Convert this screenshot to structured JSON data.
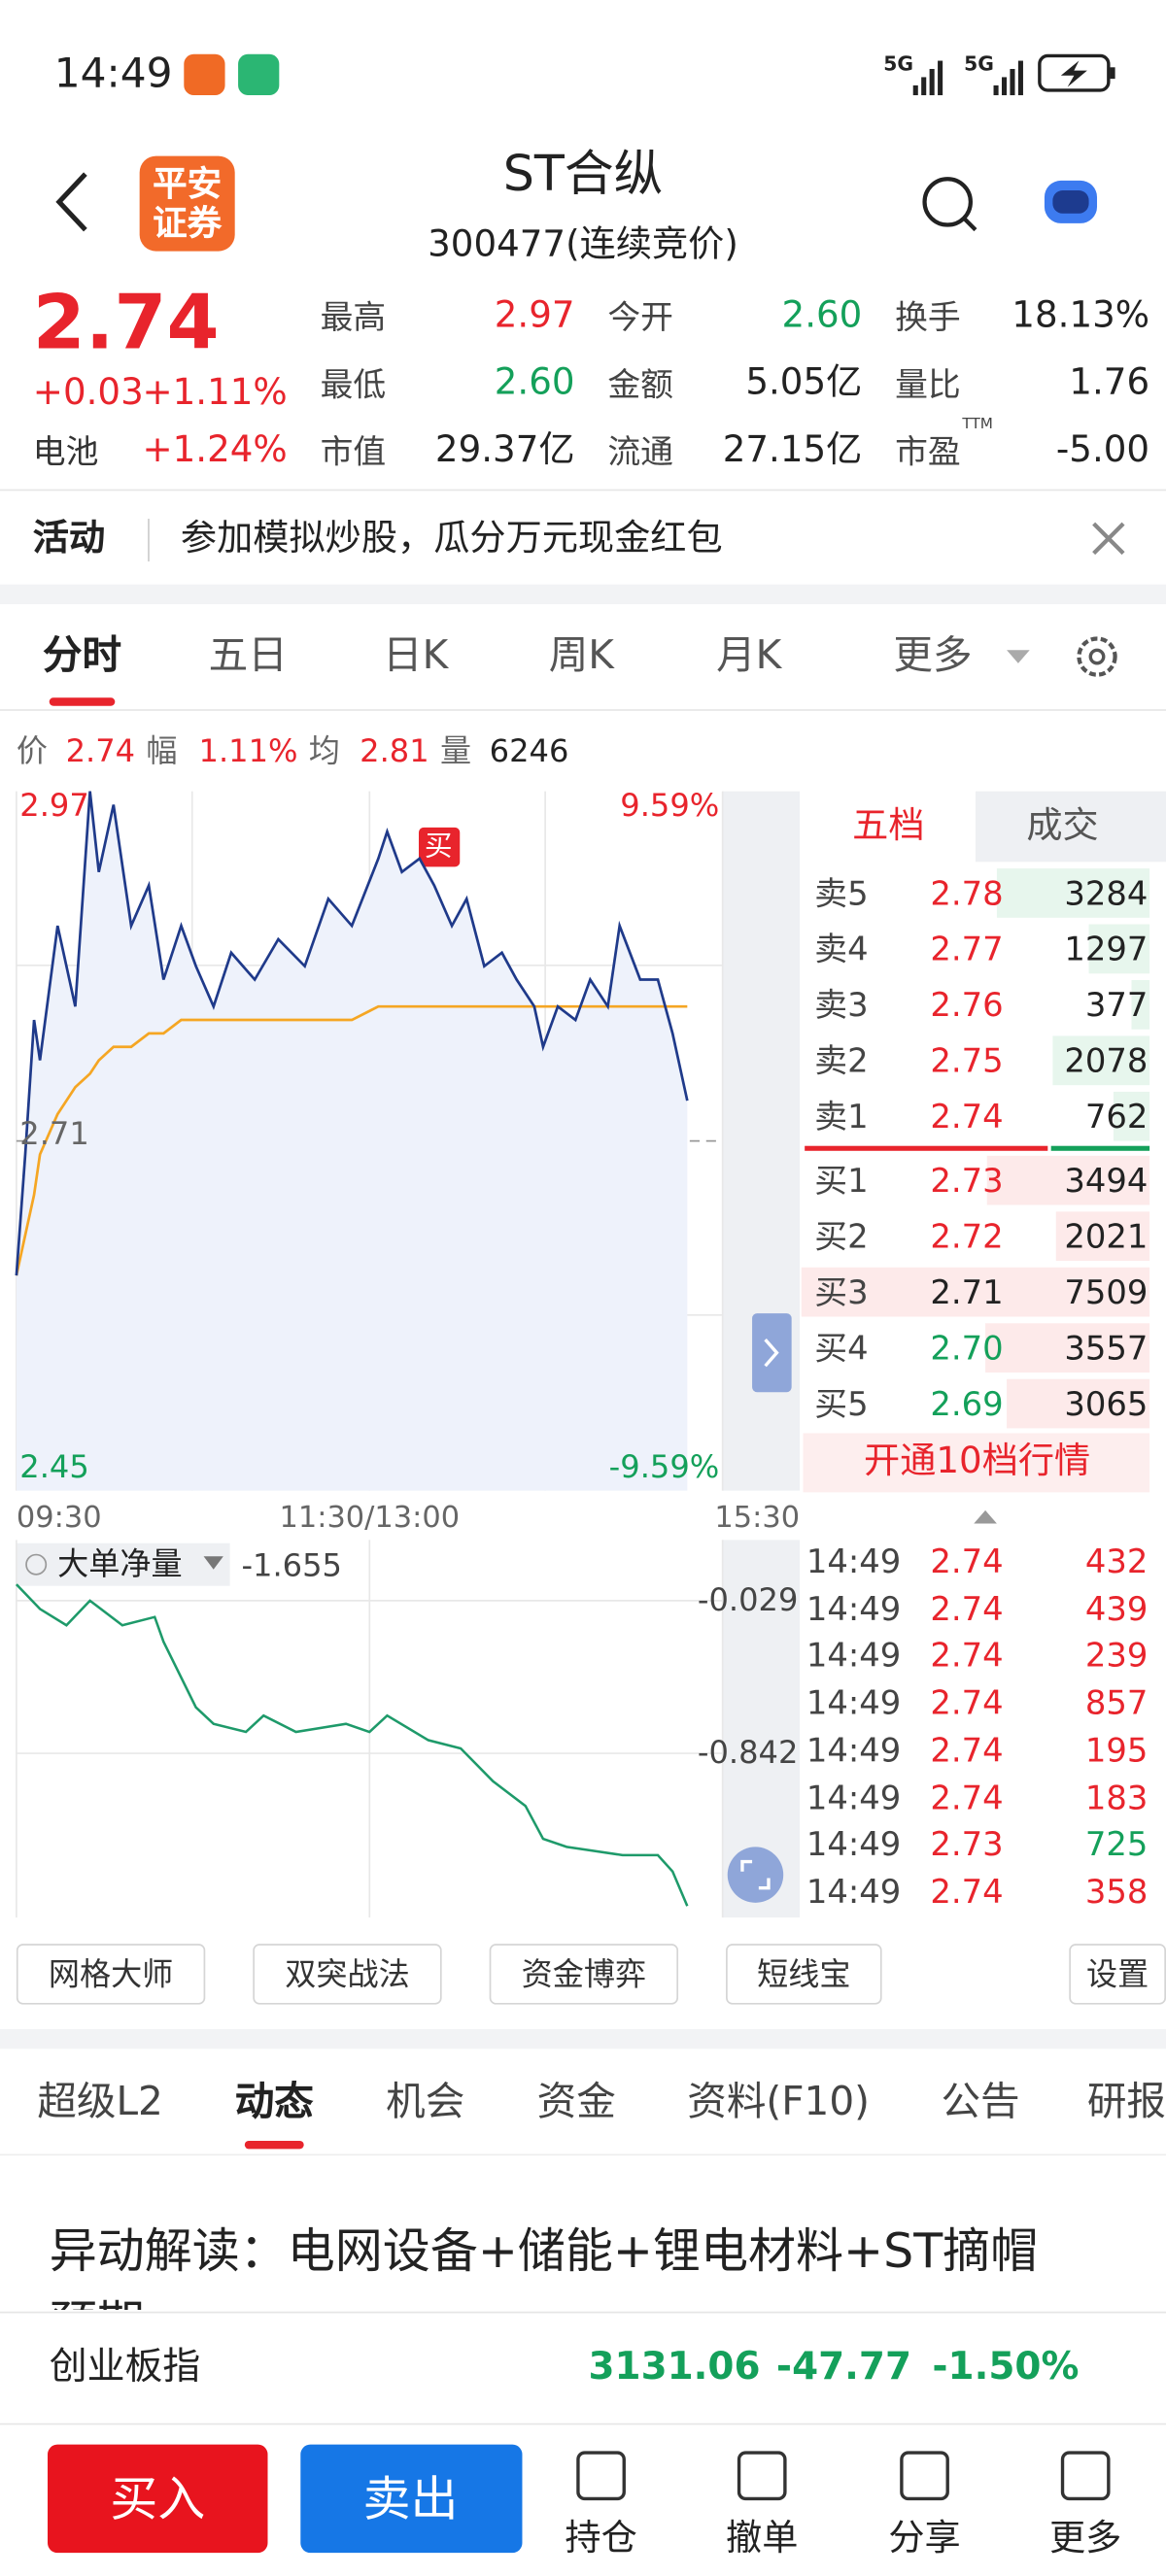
{
  "status_bar": {
    "time": "14:49",
    "net1": "5G",
    "net2": "5G"
  },
  "header": {
    "logo": "平安证券",
    "title": "ST合纵",
    "subtitle": "300477(连续竞价)"
  },
  "quote": {
    "price": "2.74",
    "change": "+0.03",
    "change_pct": "+1.11%",
    "extra_label": "电池",
    "extra_pct": "+1.24%",
    "ttm": "TTM",
    "stats": [
      [
        {
          "label": "最高",
          "value": "2.97",
          "tone": "up"
        },
        {
          "label": "今开",
          "value": "2.60",
          "tone": "down"
        },
        {
          "label": "换手",
          "value": "18.13%",
          "tone": "flat"
        }
      ],
      [
        {
          "label": "最低",
          "value": "2.60",
          "tone": "down"
        },
        {
          "label": "金额",
          "value": "5.05亿",
          "tone": "flat"
        },
        {
          "label": "量比",
          "value": "1.76",
          "tone": "flat"
        }
      ],
      [
        {
          "label": "市值",
          "value": "29.37亿",
          "tone": "flat"
        },
        {
          "label": "流通",
          "value": "27.15亿",
          "tone": "flat"
        },
        {
          "label": "市盈",
          "value": "-5.00",
          "tone": "flat"
        }
      ]
    ]
  },
  "activity": {
    "label": "活动",
    "text": "参加模拟炒股，瓜分万元现金红包"
  },
  "tabs": {
    "items": [
      "分时",
      "五日",
      "日K",
      "周K",
      "月K",
      "更多"
    ],
    "active": 0
  },
  "info": {
    "price_label": "价",
    "price": "2.74",
    "amp_label": "幅",
    "amp": "1.11%",
    "avg_label": "均",
    "avg": "2.81",
    "vol_label": "量",
    "vol": "6246"
  },
  "chart": {
    "top": 2.97,
    "bottom": 2.45,
    "ref": 2.71,
    "top_pct": "9.59%",
    "bottom_pct": "-9.59%",
    "buy_marker": "买",
    "session_minutes": 240,
    "times": [
      "09:30",
      "11:30/13:00",
      "15:30"
    ],
    "minutes": [
      0,
      3,
      6,
      8,
      14,
      20,
      25,
      28,
      33,
      39,
      45,
      50,
      56,
      61,
      67,
      73,
      81,
      89,
      98,
      106,
      114,
      123,
      126,
      131,
      137,
      142,
      148,
      153,
      159,
      165,
      170,
      176,
      179,
      184,
      190,
      195,
      201,
      205,
      212,
      218,
      223,
      228
    ],
    "price": [
      2.61,
      2.7,
      2.8,
      2.77,
      2.87,
      2.81,
      2.97,
      2.91,
      2.96,
      2.87,
      2.9,
      2.83,
      2.87,
      2.84,
      2.81,
      2.85,
      2.83,
      2.86,
      2.84,
      2.89,
      2.87,
      2.92,
      2.94,
      2.91,
      2.92,
      2.9,
      2.87,
      2.89,
      2.84,
      2.85,
      2.83,
      2.81,
      2.78,
      2.81,
      2.8,
      2.83,
      2.81,
      2.87,
      2.83,
      2.83,
      2.79,
      2.74
    ],
    "avg": [
      2.61,
      2.64,
      2.67,
      2.7,
      2.73,
      2.75,
      2.76,
      2.77,
      2.78,
      2.78,
      2.79,
      2.79,
      2.8,
      2.8,
      2.8,
      2.8,
      2.8,
      2.8,
      2.8,
      2.8,
      2.8,
      2.81,
      2.81,
      2.81,
      2.81,
      2.81,
      2.81,
      2.81,
      2.81,
      2.81,
      2.81,
      2.81,
      2.81,
      2.81,
      2.81,
      2.81,
      2.81,
      2.81,
      2.81,
      2.81,
      2.81,
      2.81
    ]
  },
  "flow": {
    "label": "大单净量",
    "value": "-1.655",
    "levels": [
      -0.029,
      -0.842
    ],
    "minutes": [
      0,
      8,
      17,
      25,
      36,
      47,
      50,
      61,
      67,
      78,
      84,
      95,
      112,
      120,
      126,
      140,
      151,
      162,
      173,
      179,
      187,
      206,
      218,
      223,
      228
    ],
    "values": [
      0.058,
      -0.073,
      -0.16,
      -0.029,
      -0.16,
      -0.116,
      -0.248,
      -0.597,
      -0.685,
      -0.728,
      -0.641,
      -0.728,
      -0.685,
      -0.728,
      -0.641,
      -0.772,
      -0.816,
      -0.991,
      -1.122,
      -1.297,
      -1.34,
      -1.384,
      -1.384,
      -1.471,
      -1.655
    ]
  },
  "order_book": {
    "tabs": [
      "五档",
      "成交"
    ],
    "asks": [
      {
        "label": "卖5",
        "price": "2.78",
        "vol": 3284
      },
      {
        "label": "卖4",
        "price": "2.77",
        "vol": 1297
      },
      {
        "label": "卖3",
        "price": "2.76",
        "vol": 377
      },
      {
        "label": "卖2",
        "price": "2.75",
        "vol": 2078
      },
      {
        "label": "卖1",
        "price": "2.74",
        "vol": 762
      }
    ],
    "bids": [
      {
        "label": "买1",
        "price": "2.73",
        "vol": 3494
      },
      {
        "label": "买2",
        "price": "2.72",
        "vol": 2021
      },
      {
        "label": "买3",
        "price": "2.71",
        "vol": 7509
      },
      {
        "label": "买4",
        "price": "2.70",
        "vol": 3557
      },
      {
        "label": "买5",
        "price": "2.69",
        "vol": 3065
      }
    ],
    "promo": "开通10档行情"
  },
  "trades": [
    {
      "time": "14:49",
      "price": "2.74",
      "vol": "432",
      "side": "buy"
    },
    {
      "time": "14:49",
      "price": "2.74",
      "vol": "439",
      "side": "buy"
    },
    {
      "time": "14:49",
      "price": "2.74",
      "vol": "239",
      "side": "buy"
    },
    {
      "time": "14:49",
      "price": "2.74",
      "vol": "857",
      "side": "buy"
    },
    {
      "time": "14:49",
      "price": "2.74",
      "vol": "195",
      "side": "buy"
    },
    {
      "time": "14:49",
      "price": "2.74",
      "vol": "183",
      "side": "buy"
    },
    {
      "time": "14:49",
      "price": "2.73",
      "vol": "725",
      "side": "sell"
    },
    {
      "time": "14:49",
      "price": "2.74",
      "vol": "358",
      "side": "buy"
    }
  ],
  "tools": [
    "网格大师",
    "双突战法",
    "资金博弈",
    "短线宝",
    "设置"
  ],
  "tabs2": {
    "items": [
      "超级L2",
      "动态",
      "机会",
      "资金",
      "资料(F10)",
      "公告",
      "研报"
    ],
    "active": 1
  },
  "news": {
    "headline": "异动解读：电网设备+储能+锂电材料+ST摘帽预期"
  },
  "index": {
    "name": "创业板指",
    "value": "3131.06",
    "change": "-47.77",
    "change_pct": "-1.50%"
  },
  "bottom_bar": {
    "buy": "买入",
    "sell": "卖出",
    "items": [
      "持仓",
      "撤单",
      "分享",
      "更多"
    ]
  }
}
